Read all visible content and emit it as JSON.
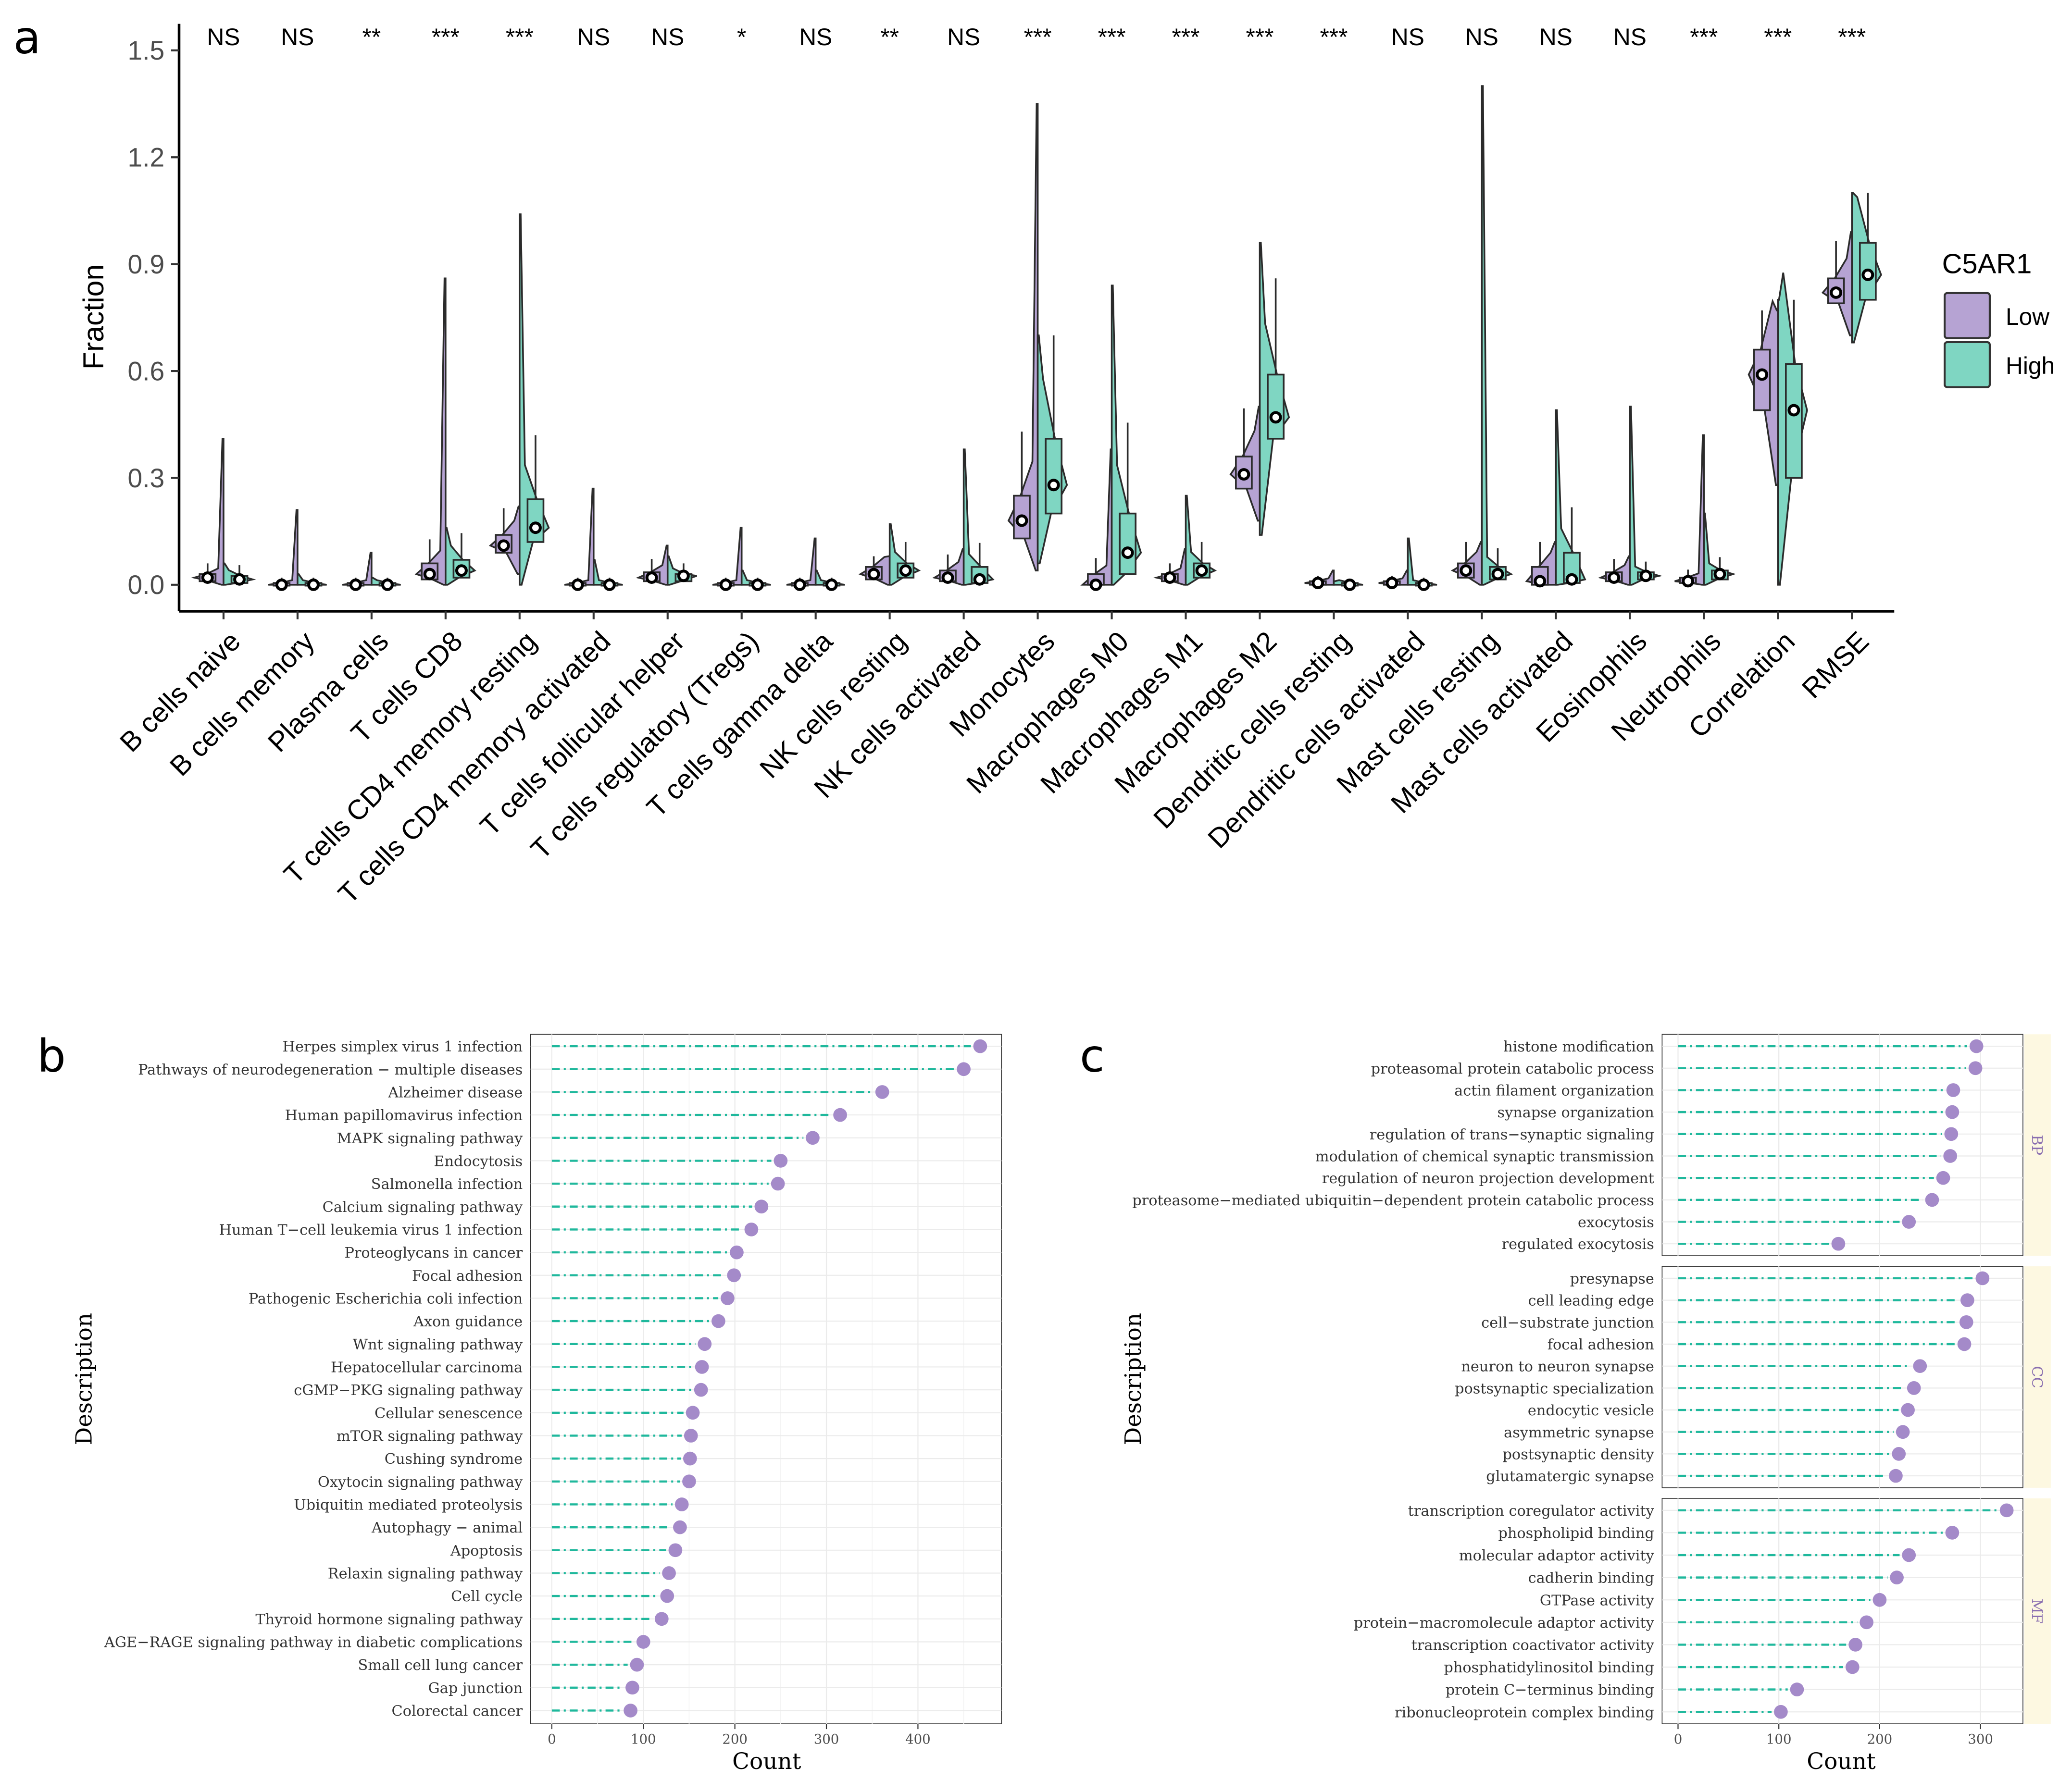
{
  "panels": {
    "a": "a",
    "b": "b",
    "c": "c"
  },
  "colors": {
    "low": "#B6A3D3",
    "high": "#7FD6C2",
    "low_dot": "#A48AC9",
    "lollipop_line": "#1FB89C",
    "strip": "#FDF8E1",
    "grid": "#EBEBEB"
  },
  "chart_data": [
    {
      "id": "a",
      "type": "split-violin-box",
      "title": "",
      "ylabel": "Fraction",
      "xlabel": "",
      "ylim": [
        -0.03,
        1.57
      ],
      "yticks": [
        "0.0",
        "0.3",
        "0.6",
        "0.9",
        "1.2",
        "1.5"
      ],
      "ytick_values": [
        0,
        0.3,
        0.6,
        0.9,
        1.2,
        1.5
      ],
      "legend": {
        "title": "C5AR1",
        "position": "right",
        "items": [
          "Low",
          "High"
        ]
      },
      "categories": [
        "B cells naive",
        "B cells memory",
        "Plasma cells",
        "T cells CD8",
        "T cells CD4 memory resting",
        "T cells CD4 memory activated",
        "T cells follicular helper",
        "T cells regulatory (Tregs)",
        "T cells gamma delta",
        "NK cells resting",
        "NK cells activated",
        "Monocytes",
        "Macrophages M0",
        "Macrophages M1",
        "Macrophages M2",
        "Dendritic cells resting",
        "Dendritic cells activated",
        "Mast cells resting",
        "Mast cells activated",
        "Eosinophils",
        "Neutrophils",
        "Correlation",
        "RMSE"
      ],
      "significance": [
        "NS",
        "NS",
        "**",
        "***",
        "***",
        "NS",
        "NS",
        "*",
        "NS",
        "**",
        "NS",
        "***",
        "***",
        "***",
        "***",
        "***",
        "NS",
        "NS",
        "NS",
        "NS",
        "***",
        "***",
        "***"
      ],
      "series": [
        {
          "name": "Low",
          "median": [
            0.02,
            0.0,
            0.0,
            0.03,
            0.11,
            0.0,
            0.02,
            0.0,
            0.0,
            0.03,
            0.02,
            0.18,
            0.0,
            0.02,
            0.31,
            0.005,
            0.005,
            0.04,
            0.01,
            0.02,
            0.01,
            0.59,
            0.82
          ],
          "q1": [
            0.01,
            0.0,
            0.0,
            0.015,
            0.09,
            0.0,
            0.01,
            0.0,
            0.0,
            0.015,
            0.01,
            0.13,
            0.0,
            0.01,
            0.27,
            0.0,
            0.0,
            0.02,
            0.0,
            0.01,
            0.005,
            0.49,
            0.79
          ],
          "q3": [
            0.03,
            0.005,
            0.005,
            0.06,
            0.14,
            0.005,
            0.035,
            0.005,
            0.005,
            0.05,
            0.04,
            0.25,
            0.03,
            0.03,
            0.36,
            0.01,
            0.01,
            0.06,
            0.05,
            0.035,
            0.02,
            0.66,
            0.86
          ],
          "max": [
            0.41,
            0.21,
            0.09,
            0.86,
            0.22,
            0.27,
            0.11,
            0.16,
            0.13,
            0.08,
            0.1,
            1.35,
            0.38,
            0.1,
            0.5,
            0.04,
            0.04,
            0.12,
            0.12,
            0.08,
            0.42,
            0.77,
            0.99
          ],
          "min": [
            0.0,
            0.0,
            0.0,
            0.0,
            0.03,
            0.0,
            0.0,
            0.0,
            0.0,
            0.0,
            0.0,
            0.04,
            0.0,
            0.0,
            0.18,
            0.0,
            0.0,
            0.0,
            0.0,
            0.0,
            0.0,
            0.28,
            0.7
          ]
        },
        {
          "name": "High",
          "median": [
            0.015,
            0.0,
            0.0,
            0.04,
            0.16,
            0.0,
            0.025,
            0.0,
            0.0,
            0.04,
            0.015,
            0.28,
            0.09,
            0.04,
            0.47,
            0.0,
            0.0,
            0.03,
            0.015,
            0.025,
            0.03,
            0.49,
            0.87
          ],
          "q1": [
            0.005,
            0.0,
            0.0,
            0.02,
            0.12,
            0.0,
            0.01,
            0.0,
            0.0,
            0.02,
            0.005,
            0.2,
            0.03,
            0.02,
            0.41,
            0.0,
            0.0,
            0.015,
            0.005,
            0.015,
            0.015,
            0.3,
            0.8
          ],
          "q3": [
            0.025,
            0.005,
            0.005,
            0.07,
            0.24,
            0.005,
            0.03,
            0.005,
            0.005,
            0.06,
            0.05,
            0.41,
            0.2,
            0.06,
            0.59,
            0.005,
            0.005,
            0.05,
            0.09,
            0.035,
            0.04,
            0.62,
            0.96
          ],
          "max": [
            0.06,
            0.03,
            0.02,
            0.16,
            1.04,
            0.07,
            0.08,
            0.04,
            0.04,
            0.17,
            0.38,
            0.7,
            0.84,
            0.25,
            0.96,
            0.01,
            0.13,
            1.4,
            0.49,
            0.5,
            0.2,
            0.8,
            1.1
          ],
          "min": [
            0.0,
            0.0,
            0.0,
            0.0,
            0.0,
            0.0,
            0.0,
            0.0,
            0.0,
            0.0,
            0.0,
            0.06,
            0.0,
            0.0,
            0.14,
            0.0,
            0.0,
            0.0,
            0.0,
            0.0,
            0.0,
            0.0,
            0.68
          ]
        }
      ]
    },
    {
      "id": "b",
      "type": "lollipop",
      "xlabel": "Count",
      "ylabel": "Description",
      "xlim": [
        -20,
        490
      ],
      "xticks": [
        "0",
        "100",
        "200",
        "300",
        "400"
      ],
      "xtick_values": [
        0,
        100,
        200,
        300,
        400
      ],
      "categories": [
        "Herpes simplex virus 1 infection",
        "Pathways of neurodegeneration − multiple diseases",
        "Alzheimer disease",
        "Human papillomavirus infection",
        "MAPK signaling pathway",
        "Endocytosis",
        "Salmonella infection",
        "Calcium signaling pathway",
        "Human T−cell leukemia virus 1 infection",
        "Proteoglycans in cancer",
        "Focal adhesion",
        "Pathogenic Escherichia coli infection",
        "Axon guidance",
        "Wnt signaling pathway",
        "Hepatocellular carcinoma",
        "cGMP−PKG signaling pathway",
        "Cellular senescence",
        "mTOR signaling pathway",
        "Cushing syndrome",
        "Oxytocin signaling pathway",
        "Ubiquitin mediated proteolysis",
        "Autophagy − animal",
        "Apoptosis",
        "Relaxin signaling pathway",
        "Cell cycle",
        "Thyroid hormone signaling pathway",
        "AGE−RAGE signaling pathway in diabetic complications",
        "Small cell lung cancer",
        "Gap junction",
        "Colorectal cancer"
      ],
      "values": [
        468,
        450,
        361,
        315,
        285,
        250,
        247,
        229,
        218,
        202,
        199,
        192,
        182,
        167,
        164,
        163,
        154,
        152,
        151,
        150,
        142,
        140,
        135,
        128,
        126,
        120,
        100,
        93,
        88,
        86
      ]
    },
    {
      "id": "c",
      "type": "lollipop-faceted",
      "xlabel": "Count",
      "ylabel": "Description",
      "xlim": [
        -15,
        345
      ],
      "xticks": [
        "0",
        "100",
        "200",
        "300"
      ],
      "xtick_values": [
        0,
        100,
        200,
        300
      ],
      "facets": [
        {
          "name": "BP",
          "categories": [
            "histone modification",
            "proteasomal protein catabolic process",
            "actin filament organization",
            "synapse organization",
            "regulation of trans−synaptic signaling",
            "modulation of chemical synaptic transmission",
            "regulation of neuron projection development",
            "proteasome−mediated ubiquitin−dependent protein catabolic process",
            "exocytosis",
            "regulated exocytosis"
          ],
          "values": [
            296,
            295,
            273,
            272,
            271,
            270,
            263,
            252,
            229,
            159
          ]
        },
        {
          "name": "CC",
          "categories": [
            "presynapse",
            "cell leading edge",
            "cell−substrate junction",
            "focal adhesion",
            "neuron to neuron synapse",
            "postsynaptic specialization",
            "endocytic vesicle",
            "asymmetric synapse",
            "postsynaptic density",
            "glutamatergic synapse"
          ],
          "values": [
            302,
            287,
            286,
            284,
            240,
            234,
            228,
            223,
            219,
            216
          ]
        },
        {
          "name": "MF",
          "categories": [
            "transcription coregulator activity",
            "phospholipid binding",
            "molecular adaptor activity",
            "cadherin binding",
            "GTPase activity",
            "protein−macromolecule adaptor activity",
            "transcription coactivator activity",
            "phosphatidylinositol binding",
            "protein C−terminus binding",
            "ribonucleoprotein complex binding"
          ],
          "values": [
            326,
            272,
            229,
            217,
            200,
            187,
            176,
            173,
            118,
            102
          ]
        }
      ]
    }
  ]
}
